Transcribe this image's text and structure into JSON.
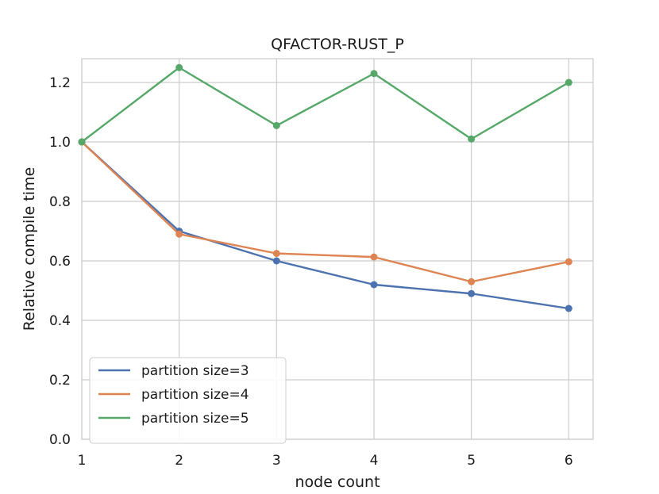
{
  "chart_data": {
    "type": "line",
    "title": "QFACTOR-RUST_P",
    "xlabel": "node count",
    "ylabel": "Relative compile time",
    "x": [
      1,
      2,
      3,
      4,
      5,
      6
    ],
    "xlim": [
      1,
      6.25
    ],
    "ylim": [
      0.0,
      1.28
    ],
    "yticks": [
      0.0,
      0.2,
      0.4,
      0.6,
      0.8,
      1.0,
      1.2
    ],
    "grid": true,
    "legend_position": "lower-left",
    "series": [
      {
        "name": "partition size=3",
        "color": "#4c72b0",
        "values": [
          1.0,
          0.7,
          0.6,
          0.52,
          0.49,
          0.44
        ]
      },
      {
        "name": "partition size=4",
        "color": "#dd8452",
        "values": [
          1.0,
          0.69,
          0.625,
          0.613,
          0.53,
          0.597
        ]
      },
      {
        "name": "partition size=5",
        "color": "#55a868",
        "values": [
          1.0,
          1.25,
          1.055,
          1.23,
          1.01,
          1.2
        ]
      }
    ]
  }
}
